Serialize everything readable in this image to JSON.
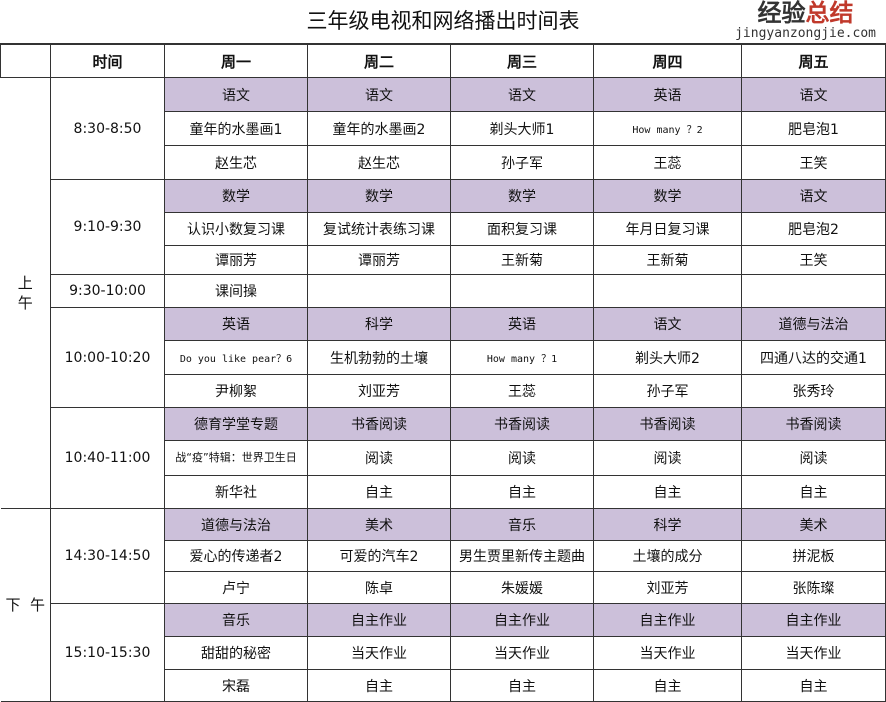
{
  "title": "三年级电视和网络播出时间表",
  "header": {
    "time": "时间",
    "days": [
      "周一",
      "周二",
      "周三",
      "周四",
      "周五"
    ]
  },
  "halves": [
    {
      "label": "上\n午"
    },
    {
      "label": "下  午"
    }
  ],
  "blocks": [
    {
      "half": 0,
      "time": "8:30-8:50",
      "rows": [
        [
          "语文",
          "语文",
          "语文",
          "英语",
          "语文"
        ],
        [
          "童年的水墨画1",
          "童年的水墨画2",
          "剃头大师1",
          "How many ？2",
          "肥皂泡1"
        ],
        [
          "赵生芯",
          "赵生芯",
          "孙子军",
          "王蕊",
          "王笑"
        ]
      ]
    },
    {
      "half": 0,
      "time": "9:10-9:30",
      "rows": [
        [
          "数学",
          "数学",
          "数学",
          "数学",
          "语文"
        ],
        [
          "认识小数复习课",
          "复试统计表练习课",
          "面积复习课",
          "年月日复习课",
          "肥皂泡2"
        ],
        [
          "谭丽芳",
          "谭丽芳",
          "王新菊",
          "王新菊",
          "王笑"
        ]
      ]
    },
    {
      "half": 0,
      "time": "9:30-10:00",
      "rows": [
        [
          "课间操",
          "",
          "",
          "",
          ""
        ]
      ]
    },
    {
      "half": 0,
      "time": "10:00-10:20",
      "rows": [
        [
          "英语",
          "科学",
          "英语",
          "语文",
          "道德与法治"
        ],
        [
          "Do you like pear？6",
          "生机勃勃的土壤",
          "How many ？1",
          "剃头大师2",
          "四通八达的交通1"
        ],
        [
          "尹柳絮",
          "刘亚芳",
          "王蕊",
          "孙子军",
          "张秀玲"
        ]
      ]
    },
    {
      "half": 0,
      "time": "10:40-11:00",
      "rows": [
        [
          "德育学堂专题",
          "书香阅读",
          "书香阅读",
          "书香阅读",
          "书香阅读"
        ],
        [
          "战“疫”特辑：世界卫生日",
          "阅读",
          "阅读",
          "阅读",
          "阅读"
        ],
        [
          "新华社",
          "自主",
          "自主",
          "自主",
          "自主"
        ]
      ]
    },
    {
      "half": 1,
      "time": "14:30-14:50",
      "rows": [
        [
          "道德与法治",
          "美术",
          "音乐",
          "科学",
          "美术"
        ],
        [
          "爱心的传递者2",
          "可爱的汽车2",
          "男生贾里新传主题曲",
          "土壤的成分",
          "拼泥板"
        ],
        [
          "卢宁",
          "陈卓",
          "朱媛媛",
          "刘亚芳",
          "张陈璨"
        ]
      ]
    },
    {
      "half": 1,
      "time": "15:10-15:30",
      "rows": [
        [
          "音乐",
          "自主作业",
          "自主作业",
          "自主作业",
          "自主作业"
        ],
        [
          "甜甜的秘密",
          "当天作业",
          "当天作业",
          "当天作业",
          "当天作业"
        ],
        [
          "宋磊",
          "自主",
          "自主",
          "自主",
          "自主"
        ]
      ]
    }
  ],
  "watermark": {
    "text1": "经验",
    "text2": "总结",
    "url": "jingyanzongjie.com"
  },
  "colors": {
    "header_row": "#ccc0da"
  }
}
